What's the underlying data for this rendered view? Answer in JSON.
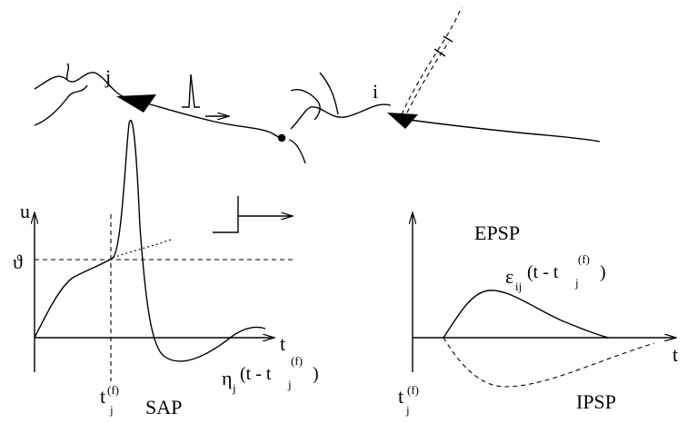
{
  "neurons": {
    "presynaptic_label": "j",
    "postsynaptic_label": "i"
  },
  "left_panel": {
    "y_axis_label": "u",
    "threshold_symbol": "ϑ",
    "x_axis_label": "t",
    "spike_time": {
      "base": "t",
      "sub": "j",
      "sup": "(f)"
    },
    "sap_label": "SAP",
    "kernel_label": {
      "symbol": "η",
      "sub": "j",
      "arg_open": "(t - t",
      "arg_sub": "j",
      "arg_sup": "(f)",
      "arg_close": ")"
    }
  },
  "right_panel": {
    "x_axis_label": "t",
    "epsp_label": "EPSP",
    "ipsp_label": "IPSP",
    "spike_time": {
      "base": "t",
      "sub": "j",
      "sup": "(f)"
    },
    "kernel_label": {
      "symbol": "ε",
      "sub": "ij",
      "arg_open": "(t - t",
      "arg_sub": "j",
      "arg_sup": "(f)",
      "arg_close": ")"
    }
  }
}
